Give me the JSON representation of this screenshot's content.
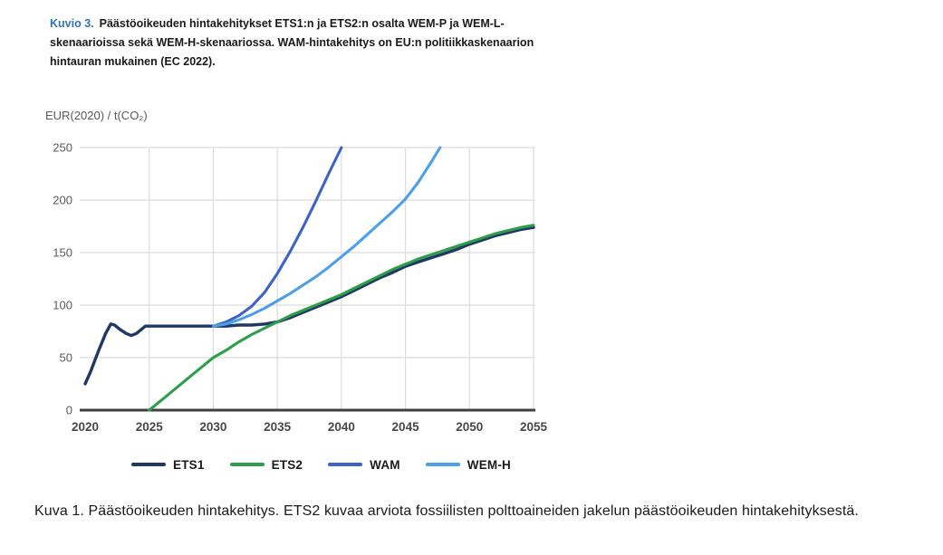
{
  "figure": {
    "label": "Kuvio 3.",
    "label_color": "#2E74B5",
    "title": "Päästöoikeuden hintakehitykset ETS1:n ja ETS2:n osalta WEM-P ja WEM-L-skenaarioissa sekä WEM-H-skenaariossa. WAM-hintakehitys on EU:n politiikkaskenaarion hintauran mukainen (EC 2022)."
  },
  "caption": "Kuva 1. Päästöoikeuden hintakehitys. ETS2 kuvaa arviota fossiilisten polttoaineiden jakelun päästöoikeuden hintakehityksestä.",
  "chart_data": {
    "type": "line",
    "title": "",
    "unit_label": "EUR(2020) / t(CO₂)",
    "xlabel": "",
    "ylabel": "EUR(2020) / t(CO2)",
    "xlim": [
      2020,
      2055
    ],
    "ylim": [
      0,
      250
    ],
    "x_ticks": [
      2020,
      2025,
      2030,
      2035,
      2040,
      2045,
      2050,
      2055
    ],
    "y_ticks": [
      0,
      50,
      100,
      150,
      200,
      250
    ],
    "grid": true,
    "legend_position": "bottom",
    "colors": {
      "grid": "#DCDCDC",
      "axis": "#3F3F3F",
      "y_tick_label": "#595959",
      "x_tick_label": "#474747"
    },
    "series": [
      {
        "name": "ETS1",
        "color": "#1F3864",
        "width": 3.4,
        "points": [
          [
            2020,
            25
          ],
          [
            2020.4,
            36
          ],
          [
            2021,
            55
          ],
          [
            2021.6,
            73
          ],
          [
            2022,
            82
          ],
          [
            2022.3,
            81
          ],
          [
            2022.7,
            77
          ],
          [
            2023.2,
            73
          ],
          [
            2023.6,
            71
          ],
          [
            2024,
            73
          ],
          [
            2024.4,
            77
          ],
          [
            2024.7,
            80
          ],
          [
            2025,
            80
          ],
          [
            2026,
            80
          ],
          [
            2027,
            80
          ],
          [
            2028,
            80
          ],
          [
            2029,
            80
          ],
          [
            2030,
            80
          ],
          [
            2031,
            80
          ],
          [
            2032,
            81
          ],
          [
            2033,
            81
          ],
          [
            2034,
            82
          ],
          [
            2035,
            84
          ],
          [
            2036,
            88
          ],
          [
            2037,
            93
          ],
          [
            2038,
            98
          ],
          [
            2039,
            103
          ],
          [
            2040,
            108
          ],
          [
            2041,
            114
          ],
          [
            2042,
            120
          ],
          [
            2043,
            126
          ],
          [
            2044,
            131
          ],
          [
            2045,
            137
          ],
          [
            2046,
            141
          ],
          [
            2047,
            145
          ],
          [
            2048,
            149
          ],
          [
            2049,
            153
          ],
          [
            2050,
            158
          ],
          [
            2051,
            162
          ],
          [
            2052,
            166
          ],
          [
            2053,
            169
          ],
          [
            2054,
            172
          ],
          [
            2055,
            174
          ]
        ]
      },
      {
        "name": "WAM",
        "color": "#3D63C6",
        "width": 3.1,
        "points": [
          [
            2030,
            80
          ],
          [
            2031,
            84
          ],
          [
            2032,
            90
          ],
          [
            2033,
            99
          ],
          [
            2034,
            112
          ],
          [
            2035,
            130
          ],
          [
            2036,
            151
          ],
          [
            2037,
            174
          ],
          [
            2038,
            199
          ],
          [
            2039,
            225
          ],
          [
            2040,
            250
          ]
        ]
      },
      {
        "name": "WEM-H",
        "color": "#4C9FE8",
        "width": 3.1,
        "points": [
          [
            2030,
            80
          ],
          [
            2031,
            82
          ],
          [
            2032,
            86
          ],
          [
            2033,
            91
          ],
          [
            2034,
            97
          ],
          [
            2035,
            104
          ],
          [
            2036,
            111
          ],
          [
            2037,
            119
          ],
          [
            2038,
            127
          ],
          [
            2039,
            136
          ],
          [
            2040,
            146
          ],
          [
            2041,
            156
          ],
          [
            2042,
            167
          ],
          [
            2043,
            178
          ],
          [
            2044,
            189
          ],
          [
            2045,
            201
          ],
          [
            2046,
            217
          ],
          [
            2047,
            236
          ],
          [
            2047.7,
            250
          ]
        ]
      },
      {
        "name": "ETS2",
        "color": "#2E9E4A",
        "width": 3.1,
        "points": [
          [
            2025,
            0
          ],
          [
            2026,
            10
          ],
          [
            2027,
            20
          ],
          [
            2028,
            30
          ],
          [
            2029,
            40
          ],
          [
            2030,
            50
          ],
          [
            2031,
            57
          ],
          [
            2032,
            65
          ],
          [
            2033,
            72
          ],
          [
            2034,
            78
          ],
          [
            2035,
            84
          ],
          [
            2036,
            90
          ],
          [
            2037,
            95
          ],
          [
            2038,
            100
          ],
          [
            2039,
            105
          ],
          [
            2040,
            110
          ],
          [
            2041,
            116
          ],
          [
            2042,
            122
          ],
          [
            2043,
            128
          ],
          [
            2044,
            134
          ],
          [
            2045,
            139
          ],
          [
            2046,
            144
          ],
          [
            2047,
            148
          ],
          [
            2048,
            152
          ],
          [
            2049,
            156
          ],
          [
            2050,
            160
          ],
          [
            2051,
            164
          ],
          [
            2052,
            168
          ],
          [
            2053,
            171
          ],
          [
            2054,
            174
          ],
          [
            2055,
            176
          ]
        ]
      }
    ],
    "legend_order": [
      "ETS1",
      "ETS2",
      "WAM",
      "WEM-H"
    ]
  }
}
